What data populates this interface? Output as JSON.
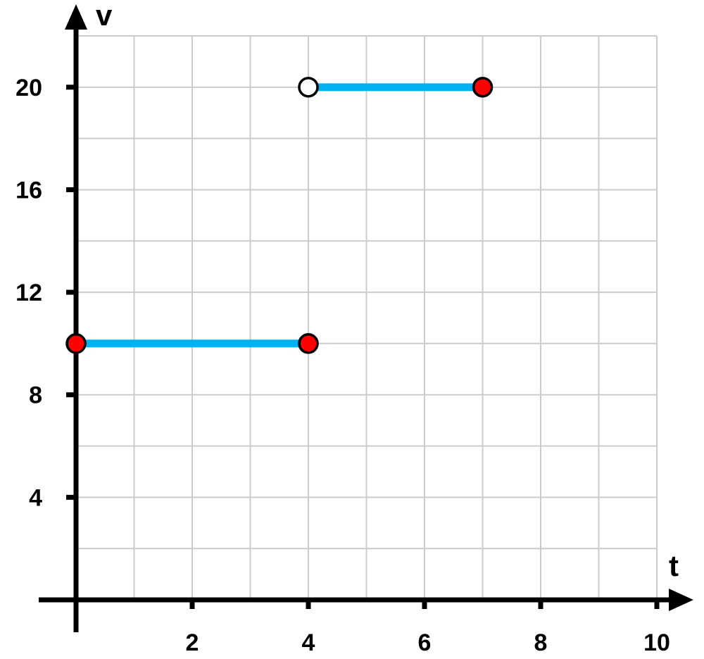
{
  "chart_data": {
    "type": "line",
    "xlabel": "t",
    "ylabel": "v",
    "xlim": [
      0,
      10
    ],
    "ylim": [
      0,
      22
    ],
    "grid": true,
    "grid_x_step": 1,
    "grid_y_step": 2,
    "x_ticks": [
      2,
      4,
      6,
      8,
      10
    ],
    "y_ticks": [
      4,
      8,
      12,
      16,
      20
    ],
    "segments": [
      {
        "x": [
          0,
          4
        ],
        "y": [
          10,
          10
        ],
        "start": "closed",
        "end": "closed"
      },
      {
        "x": [
          4,
          7
        ],
        "y": [
          20,
          20
        ],
        "start": "open",
        "end": "closed"
      }
    ],
    "colors": {
      "segment": "#00b0f0",
      "closed_point": "#ff0000",
      "open_point": "#ffffff",
      "grid": "#cccccc",
      "axis": "#000000"
    }
  }
}
